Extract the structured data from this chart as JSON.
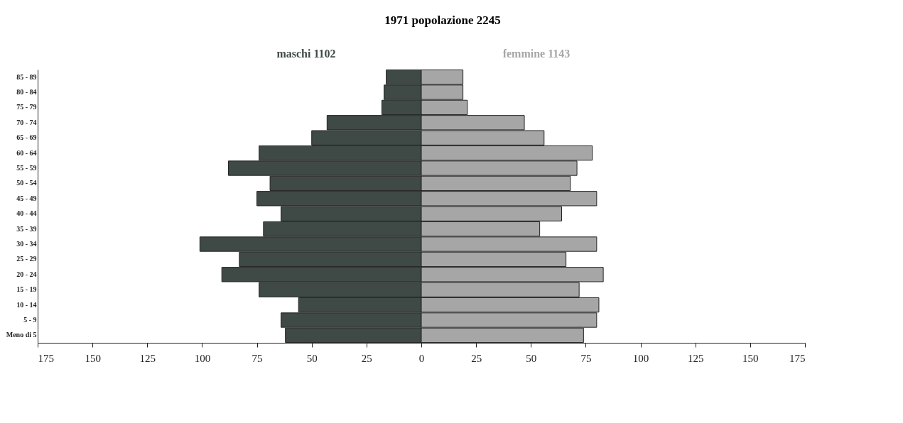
{
  "chart_data": {
    "type": "bar",
    "orientation": "horizontal",
    "stacked": true,
    "title": "1971    popolazione 2245",
    "categories": [
      "85 - 89",
      "80 - 84",
      "75 - 79",
      "70 - 74",
      "65 - 69",
      "60 - 64",
      "55 - 59",
      "50 - 54",
      "45 - 49",
      "40 - 44",
      "35 - 39",
      "30 - 34",
      "25 - 29",
      "20 - 24",
      "15 - 19",
      "10 - 14",
      "5 - 9",
      "Meno di 5"
    ],
    "series": [
      {
        "name": "maschi 1102",
        "color": "#3f4a46",
        "values": [
          -16,
          -17,
          -18,
          -43,
          -50,
          -74,
          -88,
          -69,
          -75,
          -64,
          -72,
          -101,
          -83,
          -91,
          -74,
          -56,
          -64,
          -62
        ]
      },
      {
        "name": "femmine 1143",
        "color": "#a6a6a6",
        "values": [
          19,
          19,
          21,
          47,
          56,
          78,
          71,
          68,
          80,
          64,
          54,
          80,
          66,
          83,
          72,
          81,
          80,
          74
        ]
      }
    ],
    "xlim": [
      -175,
      175
    ],
    "xticks": [
      {
        "value": -175,
        "label": "175"
      },
      {
        "value": -150,
        "label": "150"
      },
      {
        "value": -125,
        "label": "125"
      },
      {
        "value": -100,
        "label": "100"
      },
      {
        "value": -75,
        "label": "75"
      },
      {
        "value": -50,
        "label": "50"
      },
      {
        "value": -25,
        "label": "25"
      },
      0,
      25,
      50,
      75,
      100,
      125,
      150,
      175
    ],
    "grid": false,
    "legend": false
  }
}
